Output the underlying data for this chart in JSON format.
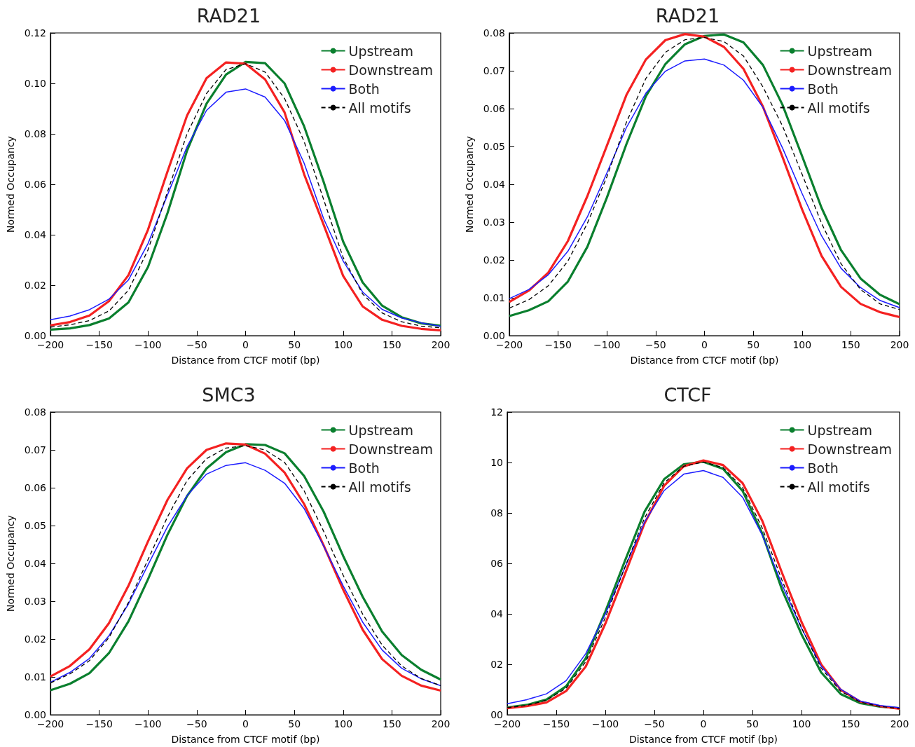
{
  "chart_data": [
    {
      "type": "line",
      "title": "RAD21",
      "xlabel": "Distance from CTCF motif (bp)",
      "ylabel": "Normed Occupancy",
      "x": [
        -200,
        -180,
        -160,
        -140,
        -120,
        -100,
        -80,
        -60,
        -40,
        -20,
        0,
        20,
        40,
        60,
        80,
        100,
        120,
        140,
        160,
        180,
        200
      ],
      "series": [
        {
          "name": "Upstream",
          "color": "#0a7f2e",
          "values": [
            0.0024,
            0.0029,
            0.0042,
            0.0068,
            0.0132,
            0.0272,
            0.0486,
            0.0733,
            0.092,
            0.1035,
            0.1085,
            0.108,
            0.1,
            0.083,
            0.061,
            0.0373,
            0.0211,
            0.0119,
            0.0073,
            0.0049,
            0.0039
          ]
        },
        {
          "name": "Downstream",
          "color": "#f42121",
          "values": [
            0.0041,
            0.0054,
            0.008,
            0.0137,
            0.024,
            0.042,
            0.0651,
            0.0872,
            0.1021,
            0.1083,
            0.1078,
            0.1016,
            0.0885,
            0.064,
            0.044,
            0.0237,
            0.0116,
            0.0063,
            0.0039,
            0.0027,
            0.0021
          ]
        },
        {
          "name": "Both",
          "color": "#1c1cff",
          "values": [
            0.0063,
            0.0078,
            0.0103,
            0.0145,
            0.0221,
            0.0365,
            0.0558,
            0.0749,
            0.0893,
            0.0965,
            0.0978,
            0.0946,
            0.0853,
            0.0684,
            0.0464,
            0.0296,
            0.0173,
            0.0104,
            0.007,
            0.0051,
            0.0037
          ]
        },
        {
          "name": "All motifs",
          "color": "#000000",
          "line_style": "dashed",
          "values": [
            0.0034,
            0.0043,
            0.006,
            0.0098,
            0.018,
            0.034,
            0.057,
            0.08,
            0.096,
            0.1055,
            0.1078,
            0.1045,
            0.094,
            0.077,
            0.054,
            0.031,
            0.0165,
            0.009,
            0.0055,
            0.0038,
            0.0031
          ]
        }
      ],
      "xlim": [
        -200,
        200
      ],
      "xticks": [
        {
          "value": -200,
          "label": "−200"
        },
        {
          "value": -150,
          "label": "−150"
        },
        {
          "value": -100,
          "label": "−100"
        },
        {
          "value": -50,
          "label": "−50"
        },
        0,
        50,
        100,
        150,
        200
      ],
      "ylim": [
        0,
        0.12
      ],
      "yticks": [
        {
          "value": 0,
          "label": "0.00"
        },
        {
          "value": 0.02,
          "label": "0.02"
        },
        {
          "value": 0.04,
          "label": "0.04"
        },
        {
          "value": 0.06,
          "label": "0.06"
        },
        {
          "value": 0.08,
          "label": "0.08"
        },
        {
          "value": 0.1,
          "label": "0.10"
        },
        {
          "value": 0.12,
          "label": "0.12"
        }
      ],
      "legend": "top right",
      "grid": false,
      "marker": "none",
      "line_style": "solid"
    },
    {
      "type": "line",
      "title": "RAD21",
      "xlabel": "Distance from CTCF motif (bp)",
      "ylabel": "Normed Occupancy",
      "x": [
        -200,
        -180,
        -160,
        -140,
        -120,
        -100,
        -80,
        -60,
        -40,
        -20,
        0,
        20,
        40,
        60,
        80,
        100,
        120,
        140,
        160,
        180,
        200
      ],
      "series": [
        {
          "name": "Upstream",
          "color": "#0a7f2e",
          "values": [
            0.0052,
            0.0067,
            0.0091,
            0.0143,
            0.0235,
            0.0365,
            0.0506,
            0.0633,
            0.0718,
            0.077,
            0.0792,
            0.0796,
            0.0775,
            0.0715,
            0.061,
            0.0475,
            0.0338,
            0.0226,
            0.0151,
            0.0108,
            0.0083
          ]
        },
        {
          "name": "Downstream",
          "color": "#f42121",
          "values": [
            0.0089,
            0.0119,
            0.0167,
            0.025,
            0.0369,
            0.0502,
            0.0636,
            0.073,
            0.0781,
            0.0797,
            0.079,
            0.0763,
            0.0705,
            0.0605,
            0.0472,
            0.0334,
            0.0211,
            0.0129,
            0.0084,
            0.0062,
            0.0049
          ]
        },
        {
          "name": "Both",
          "color": "#1c1cff",
          "values": [
            0.0098,
            0.0122,
            0.0161,
            0.0223,
            0.0314,
            0.043,
            0.055,
            0.0641,
            0.0699,
            0.0726,
            0.0731,
            0.0715,
            0.0675,
            0.0603,
            0.0496,
            0.0376,
            0.0264,
            0.0178,
            0.0127,
            0.0093,
            0.0074
          ]
        },
        {
          "name": "All motifs",
          "color": "#000000",
          "line_style": "dashed",
          "values": [
            0.0073,
            0.0095,
            0.0132,
            0.0197,
            0.0297,
            0.042,
            0.0564,
            0.068,
            0.0749,
            0.0782,
            0.0788,
            0.0777,
            0.0739,
            0.0657,
            0.0554,
            0.0427,
            0.0297,
            0.019,
            0.0122,
            0.0084,
            0.0069
          ]
        }
      ],
      "xlim": [
        -200,
        200
      ],
      "xticks": [
        {
          "value": -200,
          "label": "−200"
        },
        {
          "value": -150,
          "label": "−150"
        },
        {
          "value": -100,
          "label": "−100"
        },
        {
          "value": -50,
          "label": "−50"
        },
        0,
        50,
        100,
        150,
        200
      ],
      "ylim": [
        0,
        0.08
      ],
      "yticks": [
        {
          "value": 0,
          "label": "0.00"
        },
        0.01,
        0.02,
        0.03,
        0.04,
        0.05,
        0.06,
        0.07,
        {
          "value": 0.08,
          "label": "0.08"
        }
      ],
      "legend": "top right",
      "grid": false,
      "marker": "none",
      "line_style": "solid"
    },
    {
      "type": "line",
      "title": "SMC3",
      "xlabel": "Distance from CTCF motif (bp)",
      "ylabel": "Normed Occupancy",
      "x": [
        -200,
        -180,
        -160,
        -140,
        -120,
        -100,
        -80,
        -60,
        -40,
        -20,
        0,
        20,
        40,
        60,
        80,
        100,
        120,
        140,
        160,
        180,
        200
      ],
      "series": [
        {
          "name": "Upstream",
          "color": "#0a7f2e",
          "values": [
            0.0065,
            0.0082,
            0.011,
            0.0163,
            0.0247,
            0.0358,
            0.0476,
            0.0578,
            0.0651,
            0.0694,
            0.0715,
            0.0713,
            0.0691,
            0.0631,
            0.0537,
            0.042,
            0.0312,
            0.022,
            0.0158,
            0.0119,
            0.0093
          ]
        },
        {
          "name": "Downstream",
          "color": "#f42121",
          "values": [
            0.0101,
            0.0129,
            0.0173,
            0.0242,
            0.0341,
            0.0458,
            0.0568,
            0.0651,
            0.07,
            0.0717,
            0.0714,
            0.069,
            0.064,
            0.0557,
            0.0448,
            0.0331,
            0.0225,
            0.0147,
            0.0103,
            0.0077,
            0.0064
          ]
        },
        {
          "name": "Both",
          "color": "#1c1cff",
          "values": [
            0.0086,
            0.0112,
            0.0149,
            0.0209,
            0.0293,
            0.0396,
            0.0497,
            0.0579,
            0.0636,
            0.0659,
            0.0666,
            0.0646,
            0.0612,
            0.0545,
            0.0446,
            0.0341,
            0.0245,
            0.0171,
            0.0123,
            0.0095,
            0.0077
          ]
        },
        {
          "name": "All motifs",
          "color": "#000000",
          "line_style": "dashed",
          "values": [
            0.0084,
            0.0108,
            0.0143,
            0.0204,
            0.0297,
            0.041,
            0.0523,
            0.0619,
            0.0677,
            0.0705,
            0.0711,
            0.07,
            0.0667,
            0.0592,
            0.0485,
            0.0369,
            0.0266,
            0.0184,
            0.0129,
            0.0096,
            0.0077
          ]
        }
      ],
      "xlim": [
        -200,
        200
      ],
      "xticks": [
        {
          "value": -200,
          "label": "−200"
        },
        {
          "value": -150,
          "label": "−150"
        },
        {
          "value": -100,
          "label": "−100"
        },
        {
          "value": -50,
          "label": "−50"
        },
        0,
        50,
        100,
        150,
        200
      ],
      "ylim": [
        0,
        0.08
      ],
      "yticks": [
        {
          "value": 0,
          "label": "0.00"
        },
        0.01,
        0.02,
        0.03,
        0.04,
        0.05,
        0.06,
        0.07,
        {
          "value": 0.08,
          "label": "0.08"
        }
      ],
      "legend": "top right",
      "grid": false,
      "marker": "none",
      "line_style": "solid"
    },
    {
      "type": "line",
      "title": "CTCF",
      "xlabel": "Distance from CTCF motif (bp)",
      "x": [
        -200,
        -180,
        -160,
        -140,
        -120,
        -100,
        -80,
        -60,
        -40,
        -20,
        0,
        20,
        40,
        60,
        80,
        100,
        120,
        140,
        160,
        180,
        200
      ],
      "series": [
        {
          "name": "Upstream",
          "color": "#0a7f2e",
          "values": [
            0.29,
            0.39,
            0.6,
            1.13,
            2.24,
            4.09,
            6.1,
            8.05,
            9.34,
            9.93,
            10.03,
            9.75,
            8.87,
            7.18,
            4.97,
            3.19,
            1.68,
            0.82,
            0.46,
            0.32,
            0.26
          ]
        },
        {
          "name": "Downstream",
          "color": "#f42121",
          "values": [
            0.26,
            0.34,
            0.49,
            0.94,
            1.91,
            3.61,
            5.58,
            7.59,
            9.08,
            9.85,
            10.08,
            9.9,
            9.18,
            7.69,
            5.64,
            3.68,
            2.0,
            0.99,
            0.52,
            0.34,
            0.24
          ]
        },
        {
          "name": "Both",
          "color": "#1c1cff",
          "values": [
            0.44,
            0.6,
            0.83,
            1.35,
            2.42,
            3.99,
            5.84,
            7.64,
            8.89,
            9.54,
            9.68,
            9.41,
            8.62,
            7.12,
            5.17,
            3.43,
            1.93,
            1.01,
            0.54,
            0.37,
            0.28
          ]
        },
        {
          "name": "All motifs",
          "color": "#000000",
          "line_style": "dashed",
          "values": [
            0.28,
            0.37,
            0.58,
            1.05,
            2.1,
            3.85,
            5.85,
            7.8,
            9.2,
            9.85,
            10.02,
            9.8,
            9.0,
            7.4,
            5.35,
            3.45,
            1.85,
            0.93,
            0.5,
            0.33,
            0.25
          ]
        }
      ],
      "xlim": [
        -200,
        200
      ],
      "xticks": [
        {
          "value": -200,
          "label": "−200"
        },
        {
          "value": -150,
          "label": "−150"
        },
        {
          "value": -100,
          "label": "−100"
        },
        {
          "value": -50,
          "label": "−50"
        },
        0,
        50,
        100,
        150,
        200
      ],
      "ylim": [
        0,
        12
      ],
      "yticks": [
        {
          "value": 0,
          "label": "00"
        },
        {
          "value": 2,
          "label": "02"
        },
        {
          "value": 4,
          "label": "04"
        },
        {
          "value": 6,
          "label": "06"
        },
        {
          "value": 8,
          "label": "08"
        },
        10,
        12
      ],
      "legend": "top right",
      "grid": false,
      "marker": "none",
      "line_style": "solid"
    }
  ]
}
